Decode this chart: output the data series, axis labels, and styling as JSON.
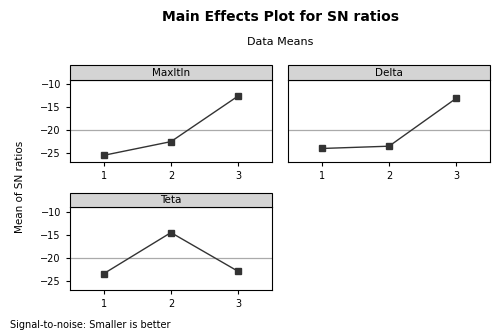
{
  "title": "Main Effects Plot for SN ratios",
  "subtitle": "Data Means",
  "ylabel": "Mean of SN ratios",
  "footer": "Signal-to-noise: Smaller is better",
  "panels": [
    {
      "label": "MaxItIn",
      "x": [
        1,
        2,
        3
      ],
      "y": [
        -25.5,
        -22.5,
        -12.5
      ]
    },
    {
      "label": "Delta",
      "x": [
        1,
        2,
        3
      ],
      "y": [
        -24.0,
        -23.5,
        -13.0
      ]
    },
    {
      "label": "Teta",
      "x": [
        1,
        2,
        3
      ],
      "y": [
        -23.5,
        -14.5,
        -23.0
      ]
    }
  ],
  "ylim": [
    -27,
    -9
  ],
  "yticks": [
    -25,
    -20,
    -15,
    -10
  ],
  "xticks": [
    1,
    2,
    3
  ],
  "mean_line": -20,
  "line_color": "#333333",
  "mean_line_color": "#aaaaaa",
  "bg_color": "#ffffff",
  "header_color": "#d4d4d4",
  "marker": "s",
  "markersize": 4,
  "linewidth": 1.0,
  "title_fontsize": 10,
  "subtitle_fontsize": 8,
  "label_fontsize": 7.5,
  "tick_fontsize": 7,
  "footer_fontsize": 7
}
